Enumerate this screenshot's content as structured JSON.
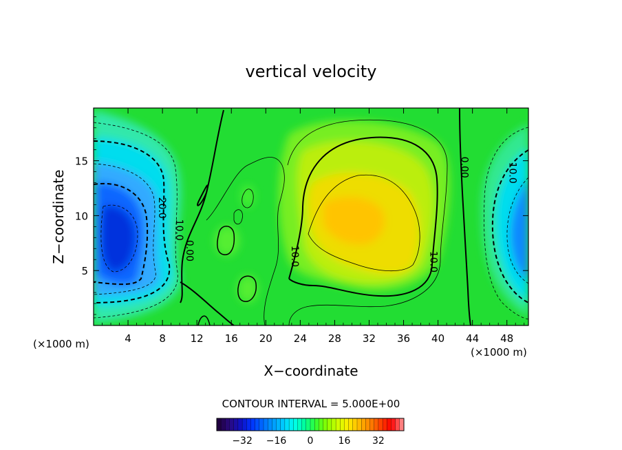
{
  "chart_data": {
    "type": "contour",
    "title": "vertical velocity",
    "xlabel": "X−coordinate",
    "ylabel": "Z−coordinate",
    "x_unit_left": "(×1000 m)",
    "x_unit_right": "(×1000 m)",
    "xlim": [
      0,
      50.5
    ],
    "ylim": [
      0,
      19.8
    ],
    "x_ticks": [
      4,
      8,
      12,
      16,
      20,
      24,
      28,
      32,
      36,
      40,
      44,
      48
    ],
    "y_ticks": [
      5,
      10,
      15
    ],
    "contour_interval_text": "CONTOUR INTERVAL = 5.000E+00",
    "contour_labels": [
      {
        "text": "20.0",
        "x": 7.6,
        "y": 10.7
      },
      {
        "text": "10.0",
        "x": 9.6,
        "y": 8.7
      },
      {
        "text": "0.00",
        "x": 10.8,
        "y": 6.8
      },
      {
        "text": "10.0",
        "x": 23.0,
        "y": 6.3
      },
      {
        "text": "10.0",
        "x": 39.1,
        "y": 5.8
      },
      {
        "text": "0.00",
        "x": 42.7,
        "y": 14.4
      },
      {
        "text": "10.0",
        "x": 48.3,
        "y": 13.9
      }
    ],
    "extrema": [
      {
        "kind": "min",
        "x": 3.5,
        "y": 8.5,
        "approx_value": -28
      },
      {
        "kind": "max",
        "x": 29.5,
        "y": 9.5,
        "approx_value": 16
      },
      {
        "kind": "min",
        "x": 50.5,
        "y": 7.5,
        "approx_value": -20
      }
    ],
    "colorbar": {
      "range": [
        -44,
        44
      ],
      "ticks": [
        -32,
        -16,
        0,
        16,
        32
      ],
      "tick_labels": [
        "−32",
        "−16",
        "0",
        "16",
        "32"
      ],
      "colors": [
        "#200040",
        "#2a0a80",
        "#1010c0",
        "#0030ff",
        "#0066ff",
        "#0099ff",
        "#00ccff",
        "#00ffee",
        "#00ff99",
        "#33ff33",
        "#88ff00",
        "#ccff00",
        "#ffee00",
        "#ffbb00",
        "#ff8800",
        "#ff4400",
        "#ff0000",
        "#ff8080"
      ]
    },
    "grid": false,
    "legend": "none"
  }
}
